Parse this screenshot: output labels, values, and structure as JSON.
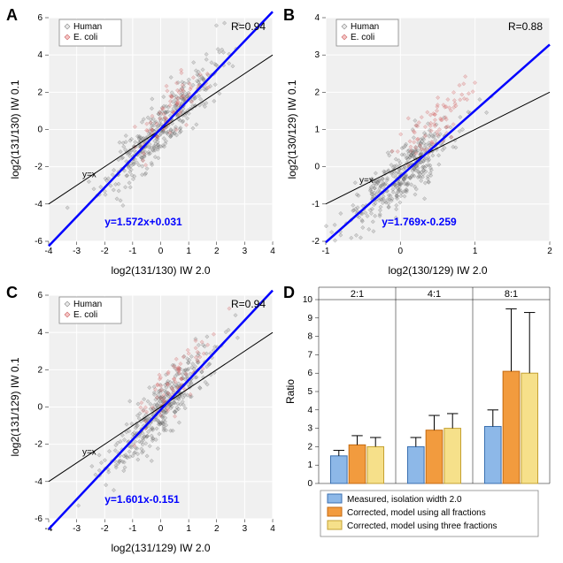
{
  "panelA": {
    "label": "A",
    "r_text": "R=0.94",
    "xlabel": "log2(131/130) IW 2.0",
    "ylabel": "log2(131/130) IW 0.1",
    "xlim": [
      -4,
      4
    ],
    "xtick_step": 1,
    "ylim": [
      -6,
      6
    ],
    "ytick_step": 2,
    "ref_line_label": "y=x",
    "fit_line": {
      "slope": 1.572,
      "intercept": 0.031,
      "label": "y=1.572x+0.031",
      "color": "#0000ff"
    },
    "ref_color": "#000000",
    "bg": "#f0f0f0",
    "grid_color": "#ffffff",
    "legend": [
      {
        "label": "Human",
        "fill": "#e8e8e8",
        "stroke": "#888888"
      },
      {
        "label": "E. coli",
        "fill": "#f5c4c4",
        "stroke": "#cc6666"
      }
    ],
    "scatter_n_human": 400,
    "scatter_n_ecoli": 80,
    "human_color": {
      "fill": "rgba(120,120,120,0.25)",
      "stroke": "rgba(80,80,80,0.5)"
    },
    "ecoli_color": {
      "fill": "rgba(220,120,120,0.3)",
      "stroke": "rgba(200,80,80,0.5)"
    }
  },
  "panelB": {
    "label": "B",
    "r_text": "R=0.88",
    "xlabel": "log2(130/129) IW 2.0",
    "ylabel": "log2(130/129) IW 0.1",
    "xlim": [
      -1,
      2
    ],
    "xtick_step": 1,
    "ylim": [
      -2,
      4
    ],
    "ytick_step": 1,
    "ref_line_label": "y=x",
    "fit_line": {
      "slope": 1.769,
      "intercept": -0.259,
      "label": "y=1.769x-0.259",
      "color": "#0000ff"
    },
    "ref_color": "#000000",
    "bg": "#f0f0f0",
    "grid_color": "#ffffff",
    "legend": [
      {
        "label": "Human",
        "fill": "#e8e8e8",
        "stroke": "#888888"
      },
      {
        "label": "E. coli",
        "fill": "#f5c4c4",
        "stroke": "#cc6666"
      }
    ],
    "scatter_n_human": 400,
    "scatter_n_ecoli": 80,
    "human_color": {
      "fill": "rgba(120,120,120,0.25)",
      "stroke": "rgba(80,80,80,0.5)"
    },
    "ecoli_color": {
      "fill": "rgba(220,120,120,0.3)",
      "stroke": "rgba(200,80,80,0.5)"
    }
  },
  "panelC": {
    "label": "C",
    "r_text": "R=0.94",
    "xlabel": "log2(131/129) IW 2.0",
    "ylabel": "log2(131/129) IW 0.1",
    "xlim": [
      -4,
      4
    ],
    "xtick_step": 1,
    "ylim": [
      -6,
      6
    ],
    "ytick_step": 2,
    "ref_line_label": "y=x",
    "fit_line": {
      "slope": 1.601,
      "intercept": -0.151,
      "label": "y=1.601x-0.151",
      "color": "#0000ff"
    },
    "ref_color": "#000000",
    "bg": "#f0f0f0",
    "grid_color": "#ffffff",
    "legend": [
      {
        "label": "Human",
        "fill": "#e8e8e8",
        "stroke": "#888888"
      },
      {
        "label": "E. coli",
        "fill": "#f5c4c4",
        "stroke": "#cc6666"
      }
    ],
    "scatter_n_human": 400,
    "scatter_n_ecoli": 80,
    "human_color": {
      "fill": "rgba(120,120,120,0.25)",
      "stroke": "rgba(80,80,80,0.5)"
    },
    "ecoli_color": {
      "fill": "rgba(220,120,120,0.3)",
      "stroke": "rgba(200,80,80,0.5)"
    }
  },
  "panelD": {
    "label": "D",
    "ylabel": "Ratio",
    "ylim": [
      0,
      10
    ],
    "ytick_step": 1,
    "facets": [
      "2:1",
      "4:1",
      "8:1"
    ],
    "series": [
      {
        "label": "Measured, isolation width 2.0",
        "fill": "#8db8e8",
        "stroke": "#3a6fb0"
      },
      {
        "label": "Corrected, model using all fractions",
        "fill": "#f29b3e",
        "stroke": "#c46a10"
      },
      {
        "label": "Corrected, model using three fractions",
        "fill": "#f6e08a",
        "stroke": "#c4a030"
      }
    ],
    "values": [
      [
        1.5,
        2.1,
        2.0
      ],
      [
        2.0,
        2.9,
        3.0
      ],
      [
        3.1,
        6.1,
        6.0
      ]
    ],
    "errors": [
      [
        0.3,
        0.5,
        0.5
      ],
      [
        0.5,
        0.8,
        0.8
      ],
      [
        0.9,
        3.4,
        3.3
      ]
    ],
    "bg": "#ffffff",
    "grid_color": "#e0e0e0",
    "bar_width": 0.7
  }
}
